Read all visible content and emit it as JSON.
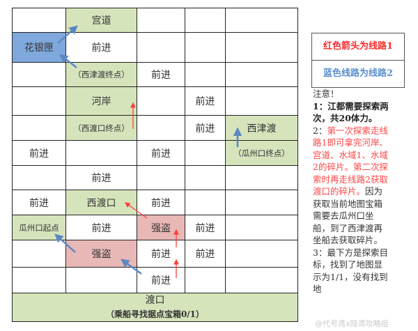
{
  "map": {
    "rows": [
      [
        {
          "t": ""
        },
        {
          "t": "宫道",
          "c": "green"
        },
        {
          "t": ""
        },
        {
          "t": ""
        },
        {
          "t": ""
        }
      ],
      [
        {
          "t": "花银匣",
          "c": "blue"
        },
        {
          "t": "前进"
        },
        {
          "t": ""
        },
        {
          "t": ""
        },
        {
          "t": ""
        }
      ],
      [
        {
          "t": ""
        },
        {
          "t": "（西津渡终点）",
          "c": "green",
          "s": 1
        },
        {
          "t": "前进"
        },
        {
          "t": ""
        },
        {
          "t": ""
        }
      ],
      [
        {
          "t": ""
        },
        {
          "t": "河岸",
          "c": "green"
        },
        {
          "t": ""
        },
        {
          "t": "前进"
        },
        {
          "t": ""
        }
      ],
      [
        {
          "t": ""
        },
        {
          "t": "（西渡口终点）",
          "c": "green",
          "s": 1
        },
        {
          "t": ""
        },
        {
          "t": "前进"
        },
        {
          "t": "西津渡",
          "c": "green"
        }
      ],
      [
        {
          "t": "前进"
        },
        {
          "t": ""
        },
        {
          "t": "前进"
        },
        {
          "t": ""
        },
        {
          "t": "（瓜州口终点）",
          "c": "green",
          "s": 1
        }
      ],
      [
        {
          "t": ""
        },
        {
          "t": "前进"
        },
        {
          "t": ""
        },
        {
          "t": ""
        },
        {
          "t": ""
        }
      ],
      [
        {
          "t": "前进"
        },
        {
          "t": "西渡口",
          "c": "green"
        },
        {
          "t": "前进"
        },
        {
          "t": ""
        },
        {
          "t": ""
        }
      ],
      [
        {
          "t": "瓜州口起点",
          "c": "green",
          "s": 1
        },
        {
          "t": "前进"
        },
        {
          "t": "强盗",
          "c": "red"
        },
        {
          "t": "前进"
        },
        {
          "t": ""
        }
      ],
      [
        {
          "t": ""
        },
        {
          "t": "强盗",
          "c": "red"
        },
        {
          "t": "前进"
        },
        {
          "t": "前进"
        },
        {
          "t": ""
        }
      ],
      [
        {
          "t": ""
        },
        {
          "t": ""
        },
        {
          "t": "前进"
        },
        {
          "t": ""
        },
        {
          "t": ""
        }
      ]
    ],
    "bottom_title": "渡口",
    "bottom_sub": "（乘船寻找据点宝箱0/1）"
  },
  "colors": {
    "route1": "#ff3b3b",
    "route2": "#5b87c5",
    "green": "#d6e4bc",
    "blue": "#7fa8dc",
    "red": "#e8b8b6"
  },
  "legend": {
    "route1": "红色箭头为线路1",
    "route2": "蓝色线路为线路2"
  },
  "notes": {
    "heading": "注意！",
    "n1": "1：江都需要探索两次，共20体力。",
    "n2_prefix": "2：",
    "n2_red": "第一次探索走线路1即可拿完河岸、宫道、水域1、水域2的碎片。第二次探索时再走线路2获取渡口的碎片。",
    "n2_rest": "因为获取当前地图宝箱需要去瓜州口坐船，到了西津渡再坐船去获取碎片。",
    "n3": "3：最下方是探索目标，找到了地图显示为1/1，没有找到地"
  },
  "watermark": "@代号鸢x隐鸢攻略组"
}
